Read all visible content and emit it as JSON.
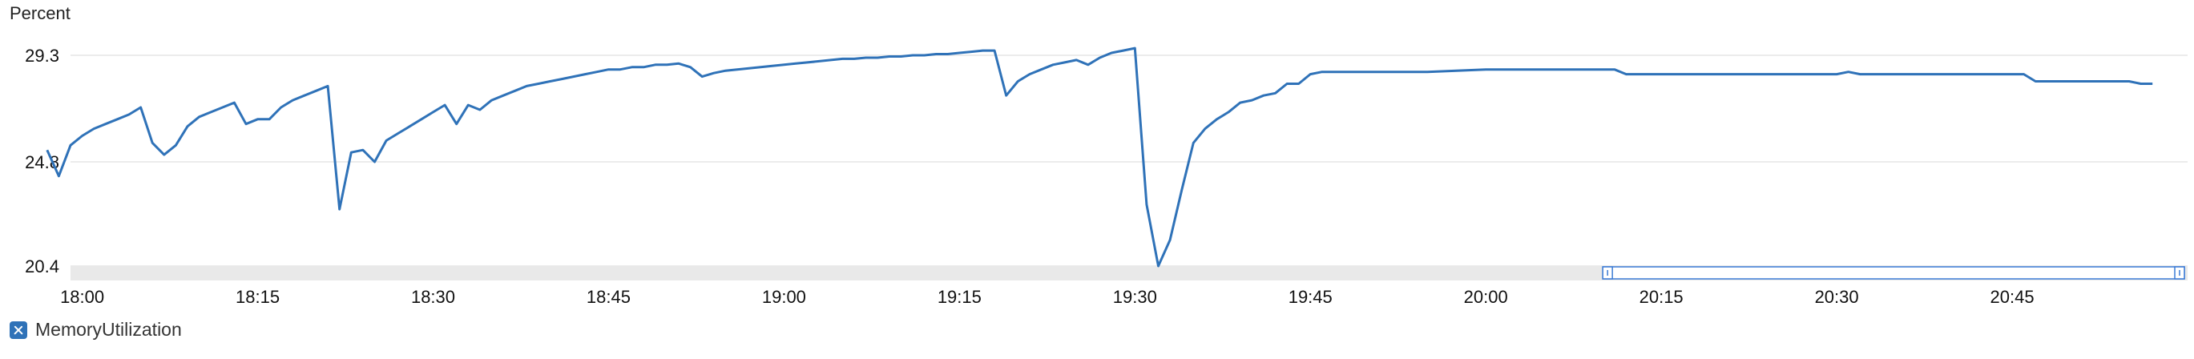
{
  "chart_data": {
    "type": "line",
    "ylabel": "Percent",
    "xlabel": "",
    "title": "",
    "ylim": [
      20.4,
      29.3
    ],
    "yticks": [
      "29.3",
      "24.8",
      "20.4"
    ],
    "xlim": [
      "17:59",
      "21:00"
    ],
    "xticks": [
      "18:00",
      "18:15",
      "18:30",
      "18:45",
      "19:00",
      "19:15",
      "19:30",
      "19:45",
      "20:00",
      "20:15",
      "20:30",
      "20:45"
    ],
    "grid": true,
    "legend_position": "bottom-left",
    "series": [
      {
        "name": "MemoryUtilization",
        "color": "#2f72b8",
        "x": [
          "17:57",
          "17:58",
          "17:59",
          "18:00",
          "18:01",
          "18:02",
          "18:03",
          "18:04",
          "18:05",
          "18:06",
          "18:07",
          "18:08",
          "18:09",
          "18:10",
          "18:11",
          "18:12",
          "18:13",
          "18:14",
          "18:15",
          "18:16",
          "18:17",
          "18:18",
          "18:19",
          "18:20",
          "18:21",
          "18:22",
          "18:23",
          "18:24",
          "18:25",
          "18:26",
          "18:27",
          "18:28",
          "18:29",
          "18:30",
          "18:31",
          "18:32",
          "18:33",
          "18:34",
          "18:35",
          "18:36",
          "18:37",
          "18:38",
          "18:39",
          "18:40",
          "18:41",
          "18:42",
          "18:43",
          "18:44",
          "18:45",
          "18:46",
          "18:47",
          "18:48",
          "18:49",
          "18:50",
          "18:51",
          "18:52",
          "18:53",
          "18:54",
          "18:55",
          "18:56",
          "18:57",
          "18:58",
          "18:59",
          "19:00",
          "19:01",
          "19:02",
          "19:03",
          "19:04",
          "19:05",
          "19:06",
          "19:07",
          "19:08",
          "19:09",
          "19:10",
          "19:11",
          "19:12",
          "19:13",
          "19:14",
          "19:15",
          "19:16",
          "19:17",
          "19:18",
          "19:19",
          "19:20",
          "19:21",
          "19:22",
          "19:23",
          "19:24",
          "19:25",
          "19:26",
          "19:27",
          "19:28",
          "19:29",
          "19:30",
          "19:31",
          "19:32",
          "19:33",
          "19:34",
          "19:35",
          "19:36",
          "19:37",
          "19:38",
          "19:39",
          "19:40",
          "19:41",
          "19:42",
          "19:43",
          "19:44",
          "19:45",
          "19:46",
          "19:47",
          "19:48",
          "19:50",
          "19:55",
          "20:00",
          "20:05",
          "20:10",
          "20:11",
          "20:12",
          "20:15",
          "20:20",
          "20:25",
          "20:30",
          "20:31",
          "20:32",
          "20:35",
          "20:40",
          "20:45",
          "20:46",
          "20:47",
          "20:50",
          "20:55",
          "20:56",
          "20:57"
        ],
        "values": [
          25.3,
          24.2,
          25.5,
          25.9,
          26.2,
          26.4,
          26.6,
          26.8,
          27.1,
          25.6,
          25.1,
          25.5,
          26.3,
          26.7,
          26.9,
          27.1,
          27.3,
          26.4,
          26.6,
          26.6,
          27.1,
          27.4,
          27.6,
          27.8,
          28.0,
          22.8,
          25.2,
          25.3,
          24.8,
          25.7,
          26.0,
          26.3,
          26.6,
          26.9,
          27.2,
          26.4,
          27.2,
          27.0,
          27.4,
          27.6,
          27.8,
          28.0,
          28.1,
          28.2,
          28.3,
          28.4,
          28.5,
          28.6,
          28.7,
          28.7,
          28.8,
          28.8,
          28.9,
          28.9,
          28.95,
          28.8,
          28.4,
          28.55,
          28.65,
          28.7,
          28.75,
          28.8,
          28.85,
          28.9,
          28.95,
          29.0,
          29.05,
          29.1,
          29.15,
          29.15,
          29.2,
          29.2,
          29.25,
          29.25,
          29.3,
          29.3,
          29.35,
          29.35,
          29.4,
          29.45,
          29.5,
          29.5,
          27.6,
          28.2,
          28.5,
          28.7,
          28.9,
          29.0,
          29.1,
          28.9,
          29.2,
          29.4,
          29.5,
          29.6,
          23.0,
          20.4,
          21.5,
          23.6,
          25.6,
          26.2,
          26.6,
          26.9,
          27.3,
          27.4,
          27.6,
          27.7,
          28.1,
          28.1,
          28.5,
          28.6,
          28.6,
          28.6,
          28.6,
          28.6,
          28.7,
          28.7,
          28.7,
          28.7,
          28.5,
          28.5,
          28.5,
          28.5,
          28.5,
          28.6,
          28.5,
          28.5,
          28.5,
          28.5,
          28.5,
          28.2,
          28.2,
          28.2,
          28.1,
          28.1
        ]
      }
    ],
    "selection_range": [
      "20:10",
      "21:00"
    ]
  },
  "legend": {
    "label": "MemoryUtilization",
    "icon": "close-checkbox-icon"
  }
}
